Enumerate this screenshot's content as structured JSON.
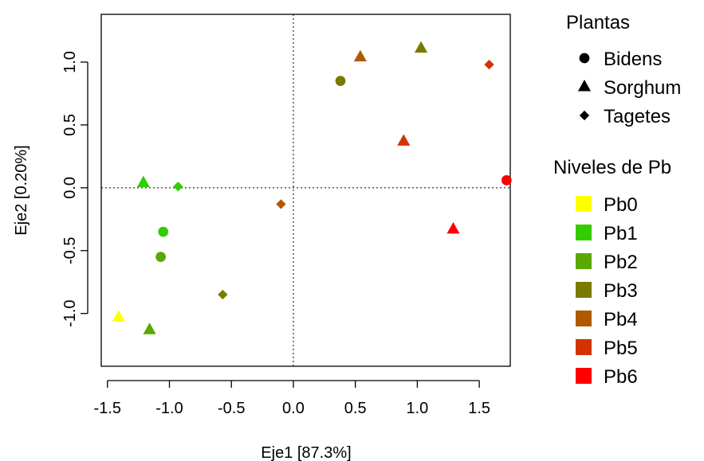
{
  "chart_data": {
    "type": "scatter",
    "title": "",
    "xlabel": "Eje1 [87.3%]",
    "ylabel": "Eje2 [0.20%]",
    "xlim": [
      -1.55,
      1.75
    ],
    "ylim": [
      -1.42,
      1.38
    ],
    "x_ticks": [
      -1.5,
      -1.0,
      -0.5,
      0.0,
      0.5,
      1.0,
      1.5
    ],
    "x_tick_labels": [
      "-1.5",
      "-1.0",
      "-0.5",
      "0.0",
      "0.5",
      "1.0",
      "1.5"
    ],
    "y_ticks": [
      -1.0,
      -0.5,
      0.0,
      0.5,
      1.0
    ],
    "y_tick_labels": [
      "-1.0",
      "-0.5",
      "0.0",
      "0.5",
      "1.0"
    ],
    "grid": false,
    "reference_lines": {
      "x": 0,
      "y": 0,
      "style": "dotted"
    },
    "legend_position": "right",
    "legend_shapes": {
      "title": "Plantas",
      "items": [
        {
          "label": "Bidens",
          "shape": "circle"
        },
        {
          "label": "Sorghum",
          "shape": "triangle"
        },
        {
          "label": "Tagetes",
          "shape": "diamond"
        }
      ]
    },
    "legend_levels": {
      "title": "Niveles de Pb",
      "items": [
        {
          "label": "Pb0",
          "color": "#ffff00"
        },
        {
          "label": "Pb1",
          "color": "#33cc00"
        },
        {
          "label": "Pb2",
          "color": "#5aa800"
        },
        {
          "label": "Pb3",
          "color": "#7a7a00"
        },
        {
          "label": "Pb4",
          "color": "#b05a00"
        },
        {
          "label": "Pb5",
          "color": "#d43300"
        },
        {
          "label": "Pb6",
          "color": "#ff0000"
        }
      ]
    },
    "points": [
      {
        "x": -1.41,
        "y": -1.03,
        "plant": "Sorghum",
        "level": "Pb0"
      },
      {
        "x": -1.21,
        "y": 0.04,
        "plant": "Sorghum",
        "level": "Pb1"
      },
      {
        "x": -0.93,
        "y": 0.01,
        "plant": "Tagetes",
        "level": "Pb1"
      },
      {
        "x": -1.05,
        "y": -0.35,
        "plant": "Bidens",
        "level": "Pb1"
      },
      {
        "x": -1.07,
        "y": -0.55,
        "plant": "Bidens",
        "level": "Pb2"
      },
      {
        "x": -1.16,
        "y": -1.13,
        "plant": "Sorghum",
        "level": "Pb2"
      },
      {
        "x": -0.57,
        "y": -0.85,
        "plant": "Tagetes",
        "level": "Pb3"
      },
      {
        "x": -0.1,
        "y": -0.13,
        "plant": "Tagetes",
        "level": "Pb4"
      },
      {
        "x": 0.38,
        "y": 0.85,
        "plant": "Bidens",
        "level": "Pb3"
      },
      {
        "x": 0.54,
        "y": 1.04,
        "plant": "Sorghum",
        "level": "Pb4"
      },
      {
        "x": 1.03,
        "y": 1.11,
        "plant": "Sorghum",
        "level": "Pb3"
      },
      {
        "x": 0.89,
        "y": 0.37,
        "plant": "Sorghum",
        "level": "Pb5"
      },
      {
        "x": 1.58,
        "y": 0.98,
        "plant": "Tagetes",
        "level": "Pb5"
      },
      {
        "x": 1.72,
        "y": 0.06,
        "plant": "Bidens",
        "level": "Pb6"
      },
      {
        "x": 1.29,
        "y": -0.33,
        "plant": "Sorghum",
        "level": "Pb6"
      }
    ]
  }
}
